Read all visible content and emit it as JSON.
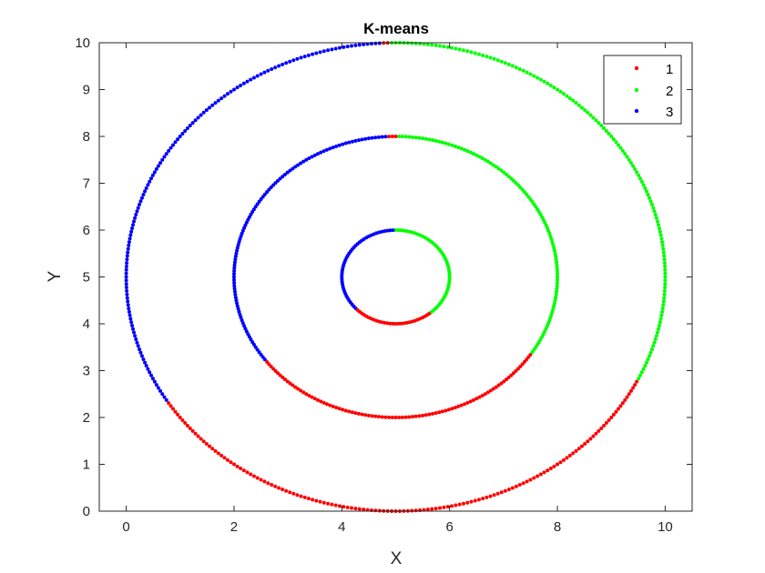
{
  "chart_data": {
    "type": "scatter",
    "title": "K-means",
    "xlabel": "X",
    "ylabel": "Y",
    "xlim": [
      -0.5,
      10.5
    ],
    "ylim": [
      0,
      10
    ],
    "xticks": [
      "0",
      "2",
      "4",
      "6",
      "8",
      "10"
    ],
    "yticks": [
      "0",
      "1",
      "2",
      "3",
      "4",
      "5",
      "6",
      "7",
      "8",
      "9",
      "10"
    ],
    "grid": false,
    "legend_position": "top-right",
    "center": [
      5,
      5
    ],
    "rings": [
      {
        "radius": 1,
        "points": 120,
        "segments": [
          {
            "cluster": "1",
            "from_deg": 223,
            "to_deg": 310
          },
          {
            "cluster": "2",
            "from_deg": 310,
            "to_deg": 452
          },
          {
            "cluster": "3",
            "from_deg": 92,
            "to_deg": 223
          }
        ]
      },
      {
        "radius": 3,
        "points": 300,
        "segments": [
          {
            "cluster": "1",
            "from_deg": 217,
            "to_deg": 327
          },
          {
            "cluster": "2",
            "from_deg": 327,
            "to_deg": 450
          },
          {
            "cluster": "3",
            "from_deg": 93,
            "to_deg": 217
          }
        ]
      },
      {
        "radius": 5,
        "points": 420,
        "segments": [
          {
            "cluster": "1",
            "from_deg": 212,
            "to_deg": 334
          },
          {
            "cluster": "2",
            "from_deg": 334,
            "to_deg": 451
          },
          {
            "cluster": "3",
            "from_deg": 93,
            "to_deg": 212
          }
        ]
      }
    ],
    "series": [
      {
        "name": "1",
        "color": "#ff0000"
      },
      {
        "name": "2",
        "color": "#00ff00"
      },
      {
        "name": "3",
        "color": "#0000ff"
      }
    ]
  }
}
